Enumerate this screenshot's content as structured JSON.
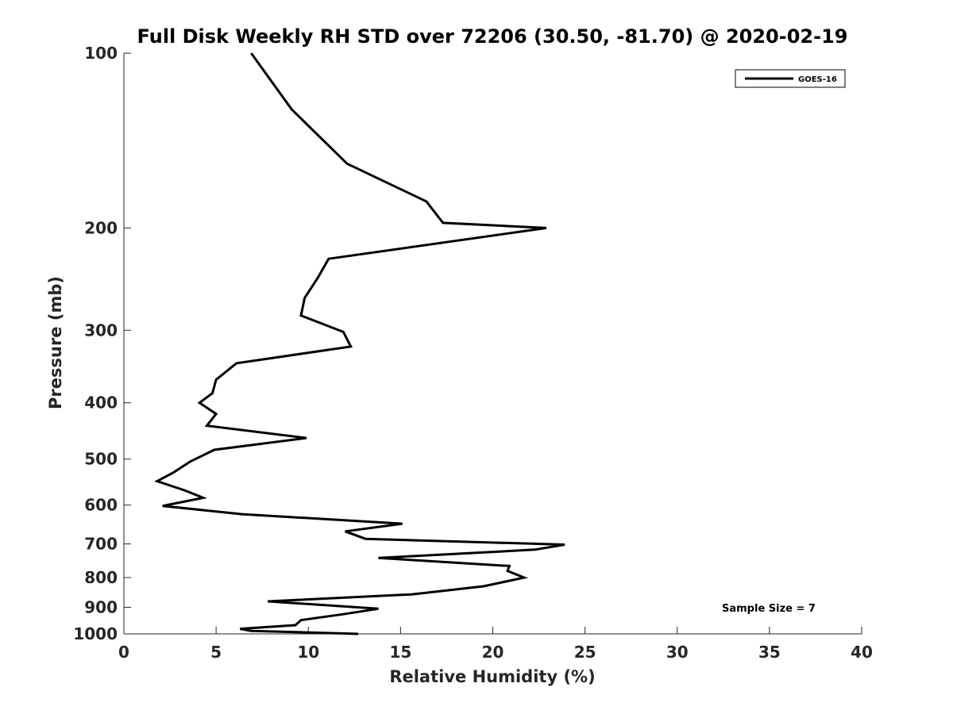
{
  "chart_data": {
    "type": "line",
    "title": "Full Disk Weekly RH STD over 72206 (30.50, -81.70) @ 2020-02-19",
    "xlabel": "Relative Humidity (%)",
    "ylabel": "Pressure (mb)",
    "xlim": [
      0,
      40
    ],
    "ylim": [
      1000,
      100
    ],
    "yscale": "log",
    "y_reversed": true,
    "x_ticks": [
      0,
      5,
      10,
      15,
      20,
      25,
      30,
      35,
      40
    ],
    "y_ticks": [
      100,
      200,
      300,
      400,
      500,
      600,
      700,
      800,
      900,
      1000
    ],
    "grid": false,
    "legend_position": "top-right",
    "annotation": "Sample Size = 7",
    "series": [
      {
        "name": "GOES-16",
        "color": "#000000",
        "points": [
          [
            6.9,
            100
          ],
          [
            9.1,
            125
          ],
          [
            12.1,
            155
          ],
          [
            16.4,
            180
          ],
          [
            17.3,
            196
          ],
          [
            22.9,
            200
          ],
          [
            11.1,
            226
          ],
          [
            10.5,
            244
          ],
          [
            9.8,
            264
          ],
          [
            9.6,
            283
          ],
          [
            11.9,
            302
          ],
          [
            12.3,
            320
          ],
          [
            6.1,
            342
          ],
          [
            5.0,
            365
          ],
          [
            4.8,
            385
          ],
          [
            4.1,
            400
          ],
          [
            5.0,
            418
          ],
          [
            4.5,
            438
          ],
          [
            9.9,
            460
          ],
          [
            4.9,
            482
          ],
          [
            3.6,
            505
          ],
          [
            2.7,
            527
          ],
          [
            1.8,
            546
          ],
          [
            3.3,
            566
          ],
          [
            4.3,
            583
          ],
          [
            2.1,
            602
          ],
          [
            6.4,
            622
          ],
          [
            15.1,
            646
          ],
          [
            12.0,
            666
          ],
          [
            13.1,
            686
          ],
          [
            23.9,
            702
          ],
          [
            22.3,
            716
          ],
          [
            13.8,
            740
          ],
          [
            20.9,
            764
          ],
          [
            20.8,
            779
          ],
          [
            21.7,
            800
          ],
          [
            19.5,
            828
          ],
          [
            15.6,
            855
          ],
          [
            7.8,
            879
          ],
          [
            13.8,
            905
          ],
          [
            11.9,
            925
          ],
          [
            9.6,
            947
          ],
          [
            9.3,
            966
          ],
          [
            6.3,
            980
          ],
          [
            6.9,
            988
          ],
          [
            12.7,
            1000
          ]
        ]
      }
    ]
  }
}
